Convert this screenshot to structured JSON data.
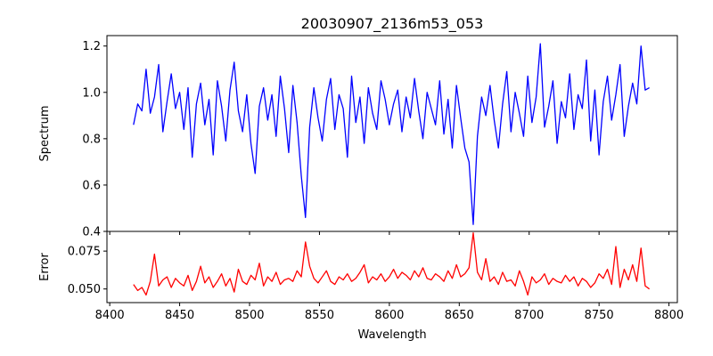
{
  "chart_data": [
    {
      "type": "line",
      "title": "20030907_2136m53_053",
      "xlabel": "",
      "ylabel": "Spectrum",
      "xlim": [
        8398,
        8806
      ],
      "ylim": [
        0.4,
        1.245
      ],
      "xticks": [
        8400,
        8450,
        8500,
        8550,
        8600,
        8650,
        8700,
        8750,
        8800
      ],
      "yticks": [
        0.4,
        0.6,
        0.8,
        1.0,
        1.2
      ],
      "ytick_labels": [
        "0.4",
        "0.6",
        "0.8",
        "1.0",
        "1.2"
      ],
      "grid": false,
      "series": [
        {
          "color": "#0000ff",
          "x": [
            8417,
            8420,
            8423,
            8426,
            8429,
            8432,
            8435,
            8438,
            8441,
            8444,
            8447,
            8450,
            8453,
            8456,
            8459,
            8462,
            8465,
            8468,
            8471,
            8474,
            8477,
            8480,
            8483,
            8486,
            8489,
            8492,
            8495,
            8498,
            8501,
            8504,
            8507,
            8510,
            8513,
            8516,
            8519,
            8522,
            8525,
            8528,
            8531,
            8534,
            8537,
            8540,
            8543,
            8546,
            8549,
            8552,
            8555,
            8558,
            8561,
            8564,
            8567,
            8570,
            8573,
            8576,
            8579,
            8582,
            8585,
            8588,
            8591,
            8594,
            8597,
            8600,
            8603,
            8606,
            8609,
            8612,
            8615,
            8618,
            8621,
            8624,
            8627,
            8630,
            8633,
            8636,
            8639,
            8642,
            8645,
            8648,
            8651,
            8654,
            8657,
            8660,
            8663,
            8666,
            8669,
            8672,
            8675,
            8678,
            8681,
            8684,
            8687,
            8690,
            8693,
            8696,
            8699,
            8702,
            8705,
            8708,
            8711,
            8714,
            8717,
            8720,
            8723,
            8726,
            8729,
            8732,
            8735,
            8738,
            8741,
            8744,
            8747,
            8750,
            8753,
            8756,
            8759,
            8762,
            8765,
            8768,
            8771,
            8774,
            8777,
            8780,
            8783,
            8786
          ],
          "y": [
            0.86,
            0.95,
            0.92,
            1.1,
            0.91,
            0.98,
            1.12,
            0.83,
            0.96,
            1.08,
            0.93,
            1.0,
            0.84,
            1.02,
            0.72,
            0.95,
            1.04,
            0.86,
            0.97,
            0.73,
            1.05,
            0.94,
            0.79,
            1.01,
            1.13,
            0.92,
            0.83,
            0.99,
            0.78,
            0.65,
            0.94,
            1.02,
            0.88,
            0.99,
            0.81,
            1.07,
            0.93,
            0.74,
            1.03,
            0.87,
            0.64,
            0.46,
            0.85,
            1.02,
            0.89,
            0.79,
            0.97,
            1.06,
            0.84,
            0.99,
            0.93,
            0.72,
            1.07,
            0.87,
            0.98,
            0.78,
            1.02,
            0.91,
            0.84,
            1.05,
            0.97,
            0.86,
            0.95,
            1.01,
            0.83,
            0.98,
            0.89,
            1.06,
            0.92,
            0.8,
            1.0,
            0.93,
            0.86,
            1.05,
            0.82,
            0.97,
            0.76,
            1.03,
            0.89,
            0.76,
            0.7,
            0.43,
            0.81,
            0.98,
            0.9,
            1.03,
            0.88,
            0.76,
            0.95,
            1.09,
            0.83,
            1.0,
            0.91,
            0.81,
            1.07,
            0.87,
            0.98,
            1.21,
            0.85,
            0.94,
            1.05,
            0.78,
            0.96,
            0.89,
            1.08,
            0.84,
            0.99,
            0.93,
            1.14,
            0.79,
            1.01,
            0.73,
            0.96,
            1.07,
            0.88,
            0.99,
            1.12,
            0.81,
            0.94,
            1.04,
            0.95,
            1.2,
            1.01,
            1.02
          ]
        }
      ]
    },
    {
      "type": "line",
      "title": "",
      "xlabel": "Wavelength",
      "ylabel": "Error",
      "xlim": [
        8398,
        8806
      ],
      "ylim": [
        0.041,
        0.088
      ],
      "xticks": [
        8400,
        8450,
        8500,
        8550,
        8600,
        8650,
        8700,
        8750,
        8800
      ],
      "xtick_labels": [
        "8400",
        "8450",
        "8500",
        "8550",
        "8600",
        "8650",
        "8700",
        "8750",
        "8800"
      ],
      "yticks": [
        0.05,
        0.075
      ],
      "ytick_labels": [
        "0.050",
        "0.075"
      ],
      "grid": false,
      "series": [
        {
          "color": "#ff0000",
          "x": [
            8417,
            8420,
            8423,
            8426,
            8429,
            8432,
            8435,
            8438,
            8441,
            8444,
            8447,
            8450,
            8453,
            8456,
            8459,
            8462,
            8465,
            8468,
            8471,
            8474,
            8477,
            8480,
            8483,
            8486,
            8489,
            8492,
            8495,
            8498,
            8501,
            8504,
            8507,
            8510,
            8513,
            8516,
            8519,
            8522,
            8525,
            8528,
            8531,
            8534,
            8537,
            8540,
            8543,
            8546,
            8549,
            8552,
            8555,
            8558,
            8561,
            8564,
            8567,
            8570,
            8573,
            8576,
            8579,
            8582,
            8585,
            8588,
            8591,
            8594,
            8597,
            8600,
            8603,
            8606,
            8609,
            8612,
            8615,
            8618,
            8621,
            8624,
            8627,
            8630,
            8633,
            8636,
            8639,
            8642,
            8645,
            8648,
            8651,
            8654,
            8657,
            8660,
            8663,
            8666,
            8669,
            8672,
            8675,
            8678,
            8681,
            8684,
            8687,
            8690,
            8693,
            8696,
            8699,
            8702,
            8705,
            8708,
            8711,
            8714,
            8717,
            8720,
            8723,
            8726,
            8729,
            8732,
            8735,
            8738,
            8741,
            8744,
            8747,
            8750,
            8753,
            8756,
            8759,
            8762,
            8765,
            8768,
            8771,
            8774,
            8777,
            8780,
            8783,
            8786
          ],
          "y": [
            0.053,
            0.049,
            0.051,
            0.046,
            0.055,
            0.073,
            0.052,
            0.056,
            0.058,
            0.051,
            0.057,
            0.054,
            0.052,
            0.059,
            0.049,
            0.055,
            0.065,
            0.054,
            0.058,
            0.051,
            0.055,
            0.06,
            0.052,
            0.057,
            0.048,
            0.063,
            0.055,
            0.053,
            0.059,
            0.056,
            0.067,
            0.052,
            0.058,
            0.055,
            0.061,
            0.053,
            0.056,
            0.057,
            0.055,
            0.062,
            0.058,
            0.081,
            0.065,
            0.057,
            0.054,
            0.058,
            0.062,
            0.055,
            0.053,
            0.058,
            0.056,
            0.06,
            0.055,
            0.057,
            0.061,
            0.066,
            0.054,
            0.058,
            0.056,
            0.06,
            0.055,
            0.058,
            0.063,
            0.057,
            0.061,
            0.059,
            0.056,
            0.062,
            0.058,
            0.064,
            0.057,
            0.056,
            0.06,
            0.058,
            0.055,
            0.062,
            0.057,
            0.066,
            0.058,
            0.06,
            0.064,
            0.087,
            0.061,
            0.056,
            0.07,
            0.055,
            0.058,
            0.053,
            0.061,
            0.055,
            0.056,
            0.052,
            0.062,
            0.055,
            0.046,
            0.058,
            0.054,
            0.056,
            0.06,
            0.053,
            0.057,
            0.055,
            0.054,
            0.059,
            0.055,
            0.058,
            0.052,
            0.057,
            0.055,
            0.051,
            0.054,
            0.06,
            0.057,
            0.063,
            0.053,
            0.078,
            0.051,
            0.063,
            0.056,
            0.066,
            0.055,
            0.077,
            0.052,
            0.05
          ]
        }
      ]
    }
  ]
}
